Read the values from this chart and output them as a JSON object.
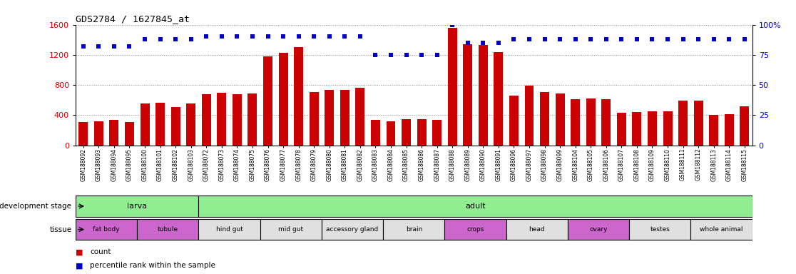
{
  "title": "GDS2784 / 1627845_at",
  "samples": [
    "GSM188092",
    "GSM188093",
    "GSM188094",
    "GSM188095",
    "GSM188100",
    "GSM188101",
    "GSM188102",
    "GSM188103",
    "GSM188072",
    "GSM188073",
    "GSM188074",
    "GSM188075",
    "GSM188076",
    "GSM188077",
    "GSM188078",
    "GSM188079",
    "GSM188080",
    "GSM188081",
    "GSM188082",
    "GSM188083",
    "GSM188084",
    "GSM188085",
    "GSM188086",
    "GSM188087",
    "GSM188088",
    "GSM188089",
    "GSM188090",
    "GSM188091",
    "GSM188096",
    "GSM188097",
    "GSM188098",
    "GSM188099",
    "GSM188104",
    "GSM188105",
    "GSM188106",
    "GSM188107",
    "GSM188108",
    "GSM188109",
    "GSM188110",
    "GSM188111",
    "GSM188112",
    "GSM188113",
    "GSM188114",
    "GSM188115"
  ],
  "counts": [
    310,
    320,
    340,
    305,
    550,
    560,
    510,
    550,
    680,
    700,
    680,
    690,
    1180,
    1230,
    1300,
    710,
    730,
    730,
    760,
    340,
    320,
    350,
    350,
    340,
    1560,
    1340,
    1330,
    1240,
    660,
    790,
    710,
    690,
    610,
    620,
    610,
    430,
    440,
    450,
    450,
    590,
    590,
    400,
    410,
    520
  ],
  "percentile_ranks": [
    82,
    82,
    82,
    82,
    88,
    88,
    88,
    88,
    90,
    90,
    90,
    90,
    90,
    90,
    90,
    90,
    90,
    90,
    90,
    75,
    75,
    75,
    75,
    75,
    100,
    85,
    85,
    85,
    88,
    88,
    88,
    88,
    88,
    88,
    88,
    88,
    88,
    88,
    88,
    88,
    88,
    88,
    88,
    88
  ],
  "bar_color": "#cc0000",
  "dot_color": "#0000cc",
  "ylim_left": [
    0,
    1600
  ],
  "ylim_right": [
    0,
    100
  ],
  "yticks_left": [
    0,
    400,
    800,
    1200,
    1600
  ],
  "yticks_right": [
    0,
    25,
    50,
    75,
    100
  ],
  "development_stages": [
    {
      "label": "larva",
      "start": 0,
      "end": 8,
      "color": "#90ee90"
    },
    {
      "label": "adult",
      "start": 8,
      "end": 44,
      "color": "#90ee90"
    }
  ],
  "tissues": [
    {
      "label": "fat body",
      "start": 0,
      "end": 4,
      "color": "#cc66cc"
    },
    {
      "label": "tubule",
      "start": 4,
      "end": 8,
      "color": "#cc66cc"
    },
    {
      "label": "hind gut",
      "start": 8,
      "end": 12,
      "color": "#e0e0e0"
    },
    {
      "label": "mid gut",
      "start": 12,
      "end": 16,
      "color": "#e0e0e0"
    },
    {
      "label": "accessory gland",
      "start": 16,
      "end": 20,
      "color": "#e0e0e0"
    },
    {
      "label": "brain",
      "start": 20,
      "end": 24,
      "color": "#e0e0e0"
    },
    {
      "label": "crops",
      "start": 24,
      "end": 28,
      "color": "#cc66cc"
    },
    {
      "label": "head",
      "start": 28,
      "end": 32,
      "color": "#e0e0e0"
    },
    {
      "label": "ovary",
      "start": 32,
      "end": 36,
      "color": "#cc66cc"
    },
    {
      "label": "testes",
      "start": 36,
      "end": 40,
      "color": "#e0e0e0"
    },
    {
      "label": "whole animal",
      "start": 40,
      "end": 44,
      "color": "#e0e0e0"
    }
  ],
  "bg_color": "#ffffff",
  "plot_bg_color": "#ffffff",
  "grid_color": "#888888",
  "xtick_bg_color": "#d8d8d8",
  "label_dev_stage": "development stage",
  "label_tissue": "tissue",
  "legend_items": [
    {
      "color": "#cc0000",
      "label": "count"
    },
    {
      "color": "#0000cc",
      "label": "percentile rank within the sample"
    }
  ]
}
